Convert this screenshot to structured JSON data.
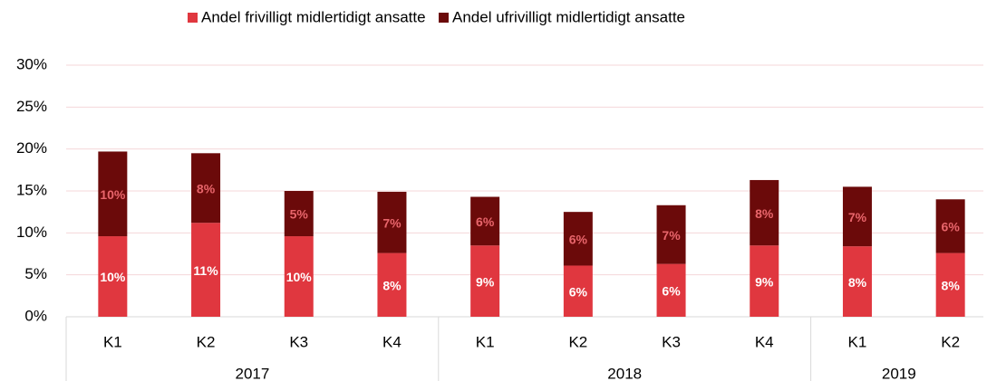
{
  "chart_data": {
    "type": "stacked_bar",
    "categories": [
      "K1",
      "K2",
      "K3",
      "K4",
      "K1",
      "K2",
      "K3",
      "K4",
      "K1",
      "K2"
    ],
    "groups": [
      {
        "name": "2017",
        "count": 4
      },
      {
        "name": "2018",
        "count": 4
      },
      {
        "name": "2019",
        "count": 2
      }
    ],
    "series": [
      {
        "name": "Andel frivilligt midlertidigt ansatte",
        "color": "#e0373f",
        "label_color": "#ffffff",
        "values": [
          9.6,
          11.2,
          9.6,
          7.6,
          8.5,
          6.1,
          6.3,
          8.5,
          8.4,
          7.6
        ],
        "value_labels": [
          "10%",
          "11%",
          "10%",
          "8%",
          "9%",
          "6%",
          "6%",
          "9%",
          "8%",
          "8%"
        ]
      },
      {
        "name": "Andel ufrivilligt midlertidigt ansatte",
        "color": "#6b0a0a",
        "label_color": "#e8656b",
        "values": [
          10.1,
          8.3,
          5.4,
          7.3,
          5.8,
          6.4,
          7.0,
          7.8,
          7.1,
          6.4
        ],
        "value_labels": [
          "10%",
          "8%",
          "5%",
          "7%",
          "6%",
          "6%",
          "7%",
          "8%",
          "7%",
          "6%"
        ]
      }
    ],
    "ylim": [
      0,
      30
    ],
    "yticks": [
      {
        "value": 0,
        "label": "0%"
      },
      {
        "value": 5,
        "label": "5%"
      },
      {
        "value": 10,
        "label": "10%"
      },
      {
        "value": 15,
        "label": "15%"
      },
      {
        "value": 20,
        "label": "20%"
      },
      {
        "value": 25,
        "label": "25%"
      },
      {
        "value": 30,
        "label": "30%"
      }
    ],
    "grid": true,
    "legend": "top"
  }
}
